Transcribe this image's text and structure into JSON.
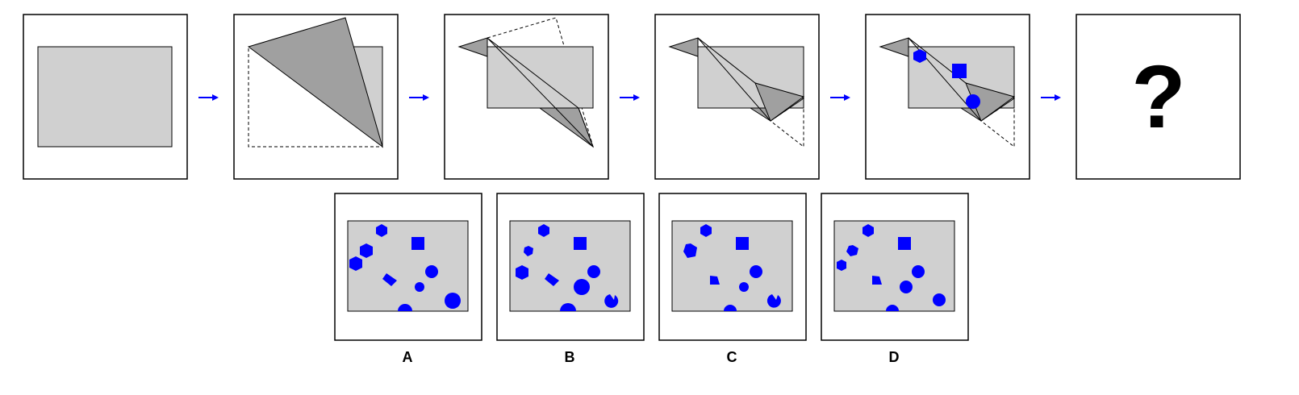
{
  "colors": {
    "paper": "#d0d0d0",
    "fold": "#a0a0a0",
    "shape": "#0000ff",
    "arrow": "#0000ff",
    "stroke": "#000000",
    "background": "#ffffff"
  },
  "question_mark": "?",
  "arrow_icon": "right-arrow-icon",
  "options": [
    {
      "label": "A"
    },
    {
      "label": "B"
    },
    {
      "label": "C"
    },
    {
      "label": "D"
    }
  ]
}
